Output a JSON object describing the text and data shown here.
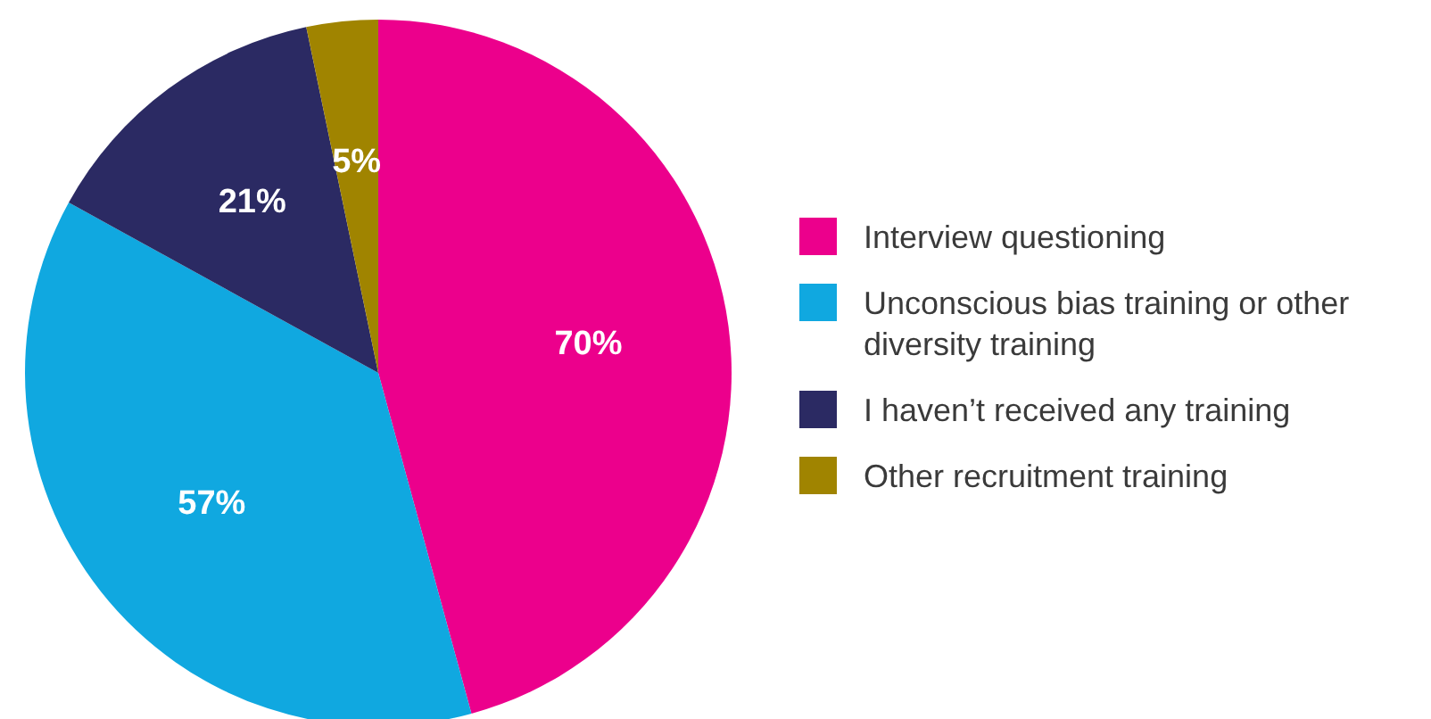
{
  "chart_data": {
    "type": "pie",
    "categories": [
      "Interview questioning",
      "Unconscious bias training or other diversity training",
      "I haven’t received any training",
      "Other recruitment training"
    ],
    "values": [
      70,
      57,
      21,
      5
    ],
    "value_labels": [
      "70%",
      "57%",
      "21%",
      "5%"
    ],
    "colors": [
      "#ec008c",
      "#10a8e0",
      "#2b2a63",
      "#a08400"
    ],
    "legend": "right"
  }
}
